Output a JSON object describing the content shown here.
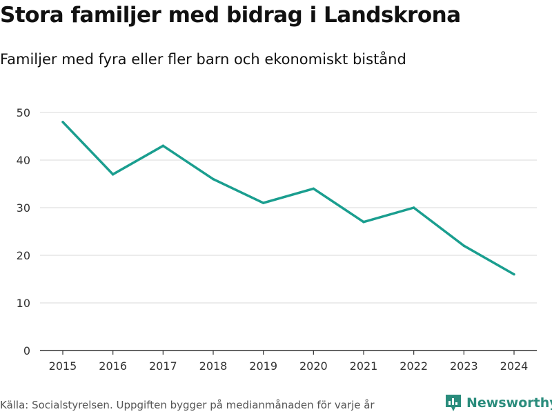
{
  "chart_data": {
    "type": "line",
    "title": "Stora familjer med bidrag i Landskrona",
    "subtitle": "Familjer med fyra eller fler barn och ekonomiskt bistånd",
    "x": [
      "2015",
      "2016",
      "2017",
      "2018",
      "2019",
      "2020",
      "2021",
      "2022",
      "2023",
      "2024"
    ],
    "series": [
      {
        "name": "Familjer",
        "values": [
          48,
          37,
          43,
          36,
          31,
          34,
          27,
          30,
          22,
          16
        ]
      }
    ],
    "ylim": [
      0,
      50
    ],
    "yticks": [
      0,
      10,
      20,
      30,
      40,
      50
    ],
    "xlabel": "",
    "ylabel": "",
    "grid": true,
    "line_color": "#1a9e8f"
  },
  "footer": {
    "source": "Källa: Socialstyrelsen. Uppgiften bygger på medianmånaden för varje år",
    "brand": "Newsworthy",
    "brand_icon": "newsworthy-logo-icon",
    "brand_color": "#2a8c7c"
  }
}
